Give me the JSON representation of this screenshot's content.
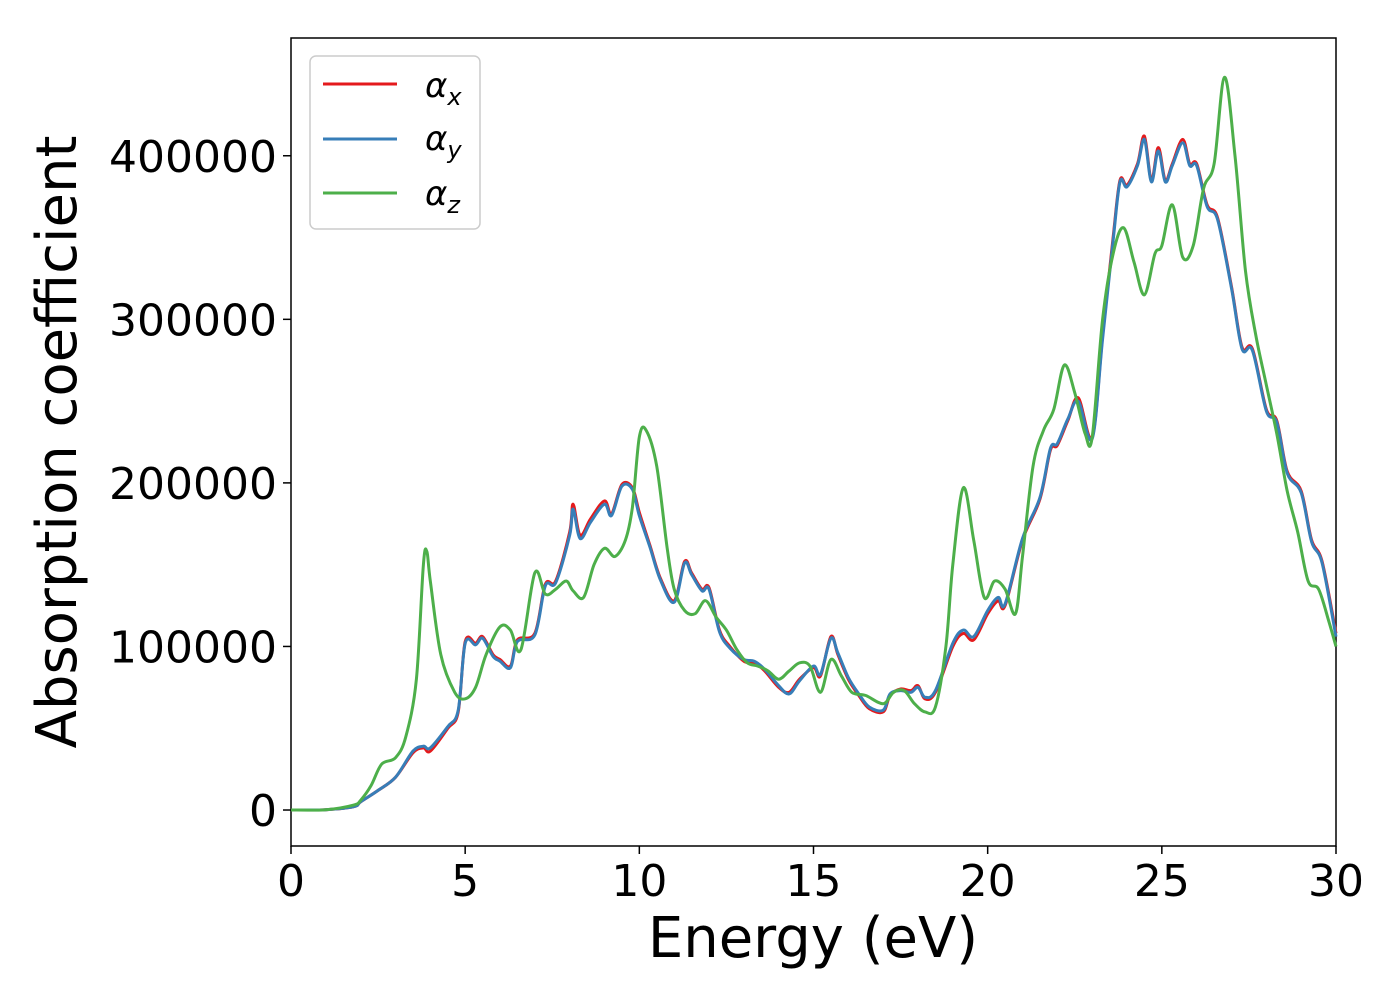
{
  "chart_data": {
    "type": "line",
    "xlabel": "Energy (eV)",
    "ylabel": "Absorption coefficient",
    "xlim": [
      0,
      30
    ],
    "ylim": [
      -22000,
      472000
    ],
    "xticks": [
      0,
      5,
      10,
      15,
      20,
      25,
      30
    ],
    "yticks": [
      0,
      100000,
      200000,
      300000,
      400000
    ],
    "grid": false,
    "legend_position": "top-left",
    "legend": [
      {
        "base": "α",
        "sub": "x",
        "color": "#e41a1c"
      },
      {
        "base": "α",
        "sub": "y",
        "color": "#377eb8"
      },
      {
        "base": "α",
        "sub": "z",
        "color": "#4daf4a"
      }
    ],
    "series": [
      {
        "name": "αx",
        "color": "#e41a1c",
        "x": [
          0,
          1,
          1.8,
          2,
          2.5,
          3,
          3.5,
          3.8,
          4,
          4.5,
          4.8,
          5,
          5.3,
          5.5,
          5.8,
          6,
          6.3,
          6.5,
          7,
          7.3,
          7.6,
          8,
          8.1,
          8.3,
          8.6,
          9,
          9.2,
          9.5,
          9.8,
          10,
          10.3,
          10.6,
          11,
          11.3,
          11.5,
          11.8,
          12,
          12.3,
          12.6,
          13,
          13.3,
          13.6,
          14,
          14.3,
          14.6,
          15,
          15.2,
          15.5,
          15.7,
          16,
          16.3,
          16.6,
          17,
          17.2,
          17.5,
          17.8,
          18,
          18.2,
          18.5,
          19,
          19.3,
          19.6,
          20,
          20.3,
          20.5,
          21,
          21.5,
          21.8,
          22,
          22.3,
          22.6,
          23,
          23.3,
          23.6,
          23.8,
          24,
          24.3,
          24.5,
          24.7,
          24.9,
          25.1,
          25.3,
          25.6,
          25.8,
          26,
          26.3,
          26.6,
          27,
          27.3,
          27.6,
          28,
          28.3,
          28.6,
          29,
          29.3,
          29.6,
          30
        ],
        "y": [
          0,
          200,
          2000,
          5000,
          12000,
          20000,
          35000,
          38000,
          36000,
          50000,
          60000,
          103000,
          102000,
          106000,
          95000,
          92000,
          88000,
          104000,
          108000,
          138000,
          140000,
          170000,
          187000,
          168000,
          178000,
          189000,
          181000,
          199000,
          197000,
          182000,
          162000,
          142000,
          128000,
          152000,
          145000,
          135000,
          136000,
          110000,
          100000,
          91000,
          90000,
          85000,
          75000,
          72000,
          80000,
          87000,
          82000,
          106000,
          95000,
          80000,
          70000,
          62000,
          60000,
          70000,
          74000,
          73000,
          76000,
          68000,
          72000,
          100000,
          108000,
          104000,
          120000,
          128000,
          125000,
          165000,
          190000,
          220000,
          223000,
          238000,
          252000,
          228000,
          290000,
          350000,
          385000,
          382000,
          395000,
          412000,
          385000,
          405000,
          385000,
          395000,
          410000,
          395000,
          395000,
          370000,
          362000,
          320000,
          283000,
          282000,
          245000,
          238000,
          207000,
          195000,
          165000,
          152000,
          108000
        ]
      },
      {
        "name": "αy",
        "color": "#377eb8",
        "x": [
          0,
          1,
          1.8,
          2,
          2.5,
          3,
          3.5,
          3.8,
          4,
          4.5,
          4.8,
          5,
          5.3,
          5.5,
          5.8,
          6,
          6.3,
          6.5,
          7,
          7.3,
          7.6,
          8,
          8.1,
          8.3,
          8.6,
          9,
          9.2,
          9.5,
          9.8,
          10,
          10.3,
          10.6,
          11,
          11.3,
          11.5,
          11.8,
          12,
          12.3,
          12.6,
          13,
          13.3,
          13.6,
          14,
          14.3,
          14.6,
          15,
          15.2,
          15.5,
          15.7,
          16,
          16.3,
          16.6,
          17,
          17.2,
          17.5,
          17.8,
          18,
          18.2,
          18.5,
          19,
          19.3,
          19.6,
          20,
          20.3,
          20.5,
          21,
          21.5,
          21.8,
          22,
          22.3,
          22.6,
          23,
          23.3,
          23.6,
          23.8,
          24,
          24.3,
          24.5,
          24.7,
          24.9,
          25.1,
          25.3,
          25.6,
          25.8,
          26,
          26.3,
          26.6,
          27,
          27.3,
          27.6,
          28,
          28.3,
          28.6,
          29,
          29.3,
          29.6,
          30
        ],
        "y": [
          0,
          200,
          2000,
          5000,
          12000,
          20000,
          36000,
          39000,
          38000,
          51000,
          61000,
          102000,
          101000,
          105000,
          94000,
          91000,
          87000,
          103000,
          107000,
          137000,
          139000,
          168000,
          184000,
          166000,
          176000,
          187000,
          180000,
          198000,
          196000,
          180000,
          161000,
          141000,
          127000,
          151000,
          144000,
          134000,
          135000,
          109000,
          99000,
          92000,
          91000,
          86000,
          76000,
          71000,
          79000,
          88000,
          83000,
          105000,
          96000,
          81000,
          71000,
          63000,
          61000,
          71000,
          73000,
          72000,
          75000,
          69000,
          73000,
          102000,
          110000,
          106000,
          122000,
          130000,
          126000,
          166000,
          191000,
          221000,
          224000,
          239000,
          250000,
          227000,
          288000,
          348000,
          384000,
          381000,
          394000,
          410000,
          384000,
          403000,
          384000,
          394000,
          408000,
          394000,
          394000,
          369000,
          361000,
          319000,
          282000,
          281000,
          244000,
          237000,
          206000,
          194000,
          164000,
          151000,
          106000
        ]
      },
      {
        "name": "αz",
        "color": "#4daf4a",
        "x": [
          0,
          1,
          1.8,
          2,
          2.3,
          2.6,
          3,
          3.3,
          3.6,
          3.8,
          3.9,
          4,
          4.3,
          4.7,
          5,
          5.3,
          5.6,
          6,
          6.3,
          6.6,
          7,
          7.3,
          7.6,
          7.9,
          8.1,
          8.4,
          8.7,
          9,
          9.3,
          9.6,
          9.8,
          10,
          10.2,
          10.5,
          10.8,
          11,
          11.3,
          11.6,
          11.9,
          12.2,
          12.5,
          12.8,
          13.1,
          13.4,
          13.7,
          14,
          14.3,
          14.6,
          14.9,
          15.2,
          15.5,
          15.8,
          16.1,
          16.5,
          17,
          17.3,
          17.6,
          17.9,
          18.2,
          18.5,
          18.8,
          19,
          19.3,
          19.6,
          19.9,
          20.2,
          20.5,
          20.8,
          21,
          21.3,
          21.6,
          21.9,
          22.2,
          22.5,
          22.8,
          23,
          23.3,
          23.6,
          23.9,
          24.2,
          24.5,
          24.8,
          25,
          25.3,
          25.6,
          25.9,
          26.2,
          26.5,
          26.8,
          27.1,
          27.4,
          27.7,
          28,
          28.3,
          28.6,
          28.9,
          29.2,
          29.5,
          29.8,
          30
        ],
        "y": [
          0,
          200,
          3000,
          6000,
          15000,
          28000,
          32000,
          45000,
          80000,
          150000,
          158000,
          140000,
          95000,
          72000,
          68000,
          75000,
          95000,
          112000,
          110000,
          98000,
          145000,
          132000,
          135000,
          140000,
          134000,
          130000,
          150000,
          160000,
          155000,
          165000,
          185000,
          228000,
          232000,
          210000,
          160000,
          135000,
          122000,
          120000,
          128000,
          118000,
          110000,
          98000,
          90000,
          88000,
          85000,
          80000,
          85000,
          90000,
          88000,
          72000,
          92000,
          82000,
          72000,
          70000,
          65000,
          72000,
          73000,
          65000,
          60000,
          63000,
          100000,
          150000,
          197000,
          165000,
          130000,
          140000,
          135000,
          120000,
          155000,
          210000,
          232000,
          245000,
          272000,
          255000,
          230000,
          228000,
          300000,
          340000,
          356000,
          335000,
          315000,
          340000,
          345000,
          370000,
          338000,
          345000,
          380000,
          395000,
          448000,
          400000,
          330000,
          290000,
          260000,
          230000,
          195000,
          170000,
          140000,
          135000,
          115000,
          100000
        ]
      }
    ]
  }
}
